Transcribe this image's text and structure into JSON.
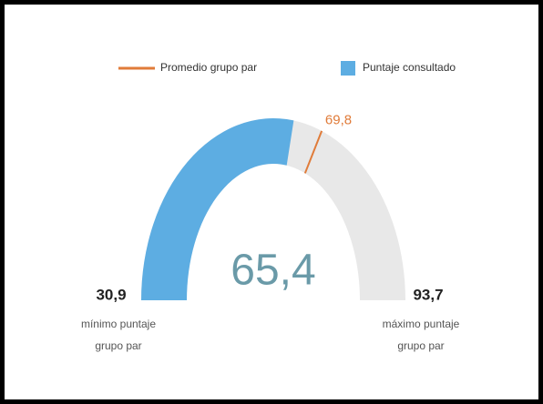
{
  "chart_data": {
    "type": "gauge",
    "ylim": [
      30.9,
      93.7
    ],
    "yticks": [
      {
        "value": 30.9,
        "label": "30,9"
      },
      {
        "value": 93.7,
        "label": "93,7"
      }
    ],
    "tick_captions": [
      [
        "mínimo puntaje",
        "grupo par"
      ],
      [
        "máximo puntaje",
        "grupo par"
      ]
    ],
    "track_color": "#e8e8e8",
    "series": [
      {
        "name": "Promedio grupo par",
        "style": "marker",
        "color": "#e07b39",
        "values": [
          69.8
        ],
        "value_labels": [
          "69,8"
        ]
      },
      {
        "name": "Puntaje consultado",
        "style": "bar",
        "color": "#5dade2",
        "values": [
          65.4
        ],
        "value_labels": [
          "65,4"
        ]
      }
    ]
  }
}
